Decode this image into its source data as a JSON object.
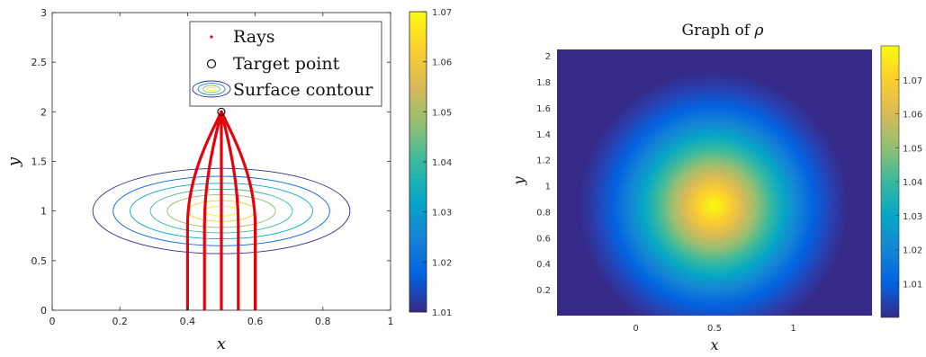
{
  "colors": {
    "ray": "#e8000b",
    "axis": "#262626",
    "parula": [
      "#352a87",
      "#0363e1",
      "#1485d4",
      "#06a7c6",
      "#38b99e",
      "#92bf73",
      "#d9ba56",
      "#fcce2e",
      "#f9fb0e"
    ]
  },
  "chart_data": [
    {
      "type": "line",
      "xlabel": "x",
      "ylabel": "y",
      "xlim": [
        0,
        1
      ],
      "ylim": [
        0,
        3
      ],
      "xticks": [
        "0",
        "0.2",
        "0.4",
        "0.6",
        "0.8",
        "1"
      ],
      "yticks": [
        "0",
        "0.5",
        "1",
        "1.5",
        "2",
        "2.5",
        "3"
      ],
      "legend": {
        "placement": "top-right",
        "entries": [
          {
            "label": "Rays",
            "marker": "red-dot"
          },
          {
            "label": "Target point",
            "marker": "black-circle"
          },
          {
            "label": "Surface contour",
            "marker": "ellipses"
          }
        ]
      },
      "target_point": {
        "x": 0.5,
        "y": 2.0
      },
      "rays": [
        {
          "x_start": 0.4,
          "y_start": 0,
          "x_end": 0.5,
          "y_end": 2.0
        },
        {
          "x_start": 0.45,
          "y_start": 0,
          "x_end": 0.5,
          "y_end": 2.0
        },
        {
          "x_start": 0.5,
          "y_start": 0,
          "x_end": 0.5,
          "y_end": 2.0
        },
        {
          "x_start": 0.55,
          "y_start": 0,
          "x_end": 0.5,
          "y_end": 2.0
        },
        {
          "x_start": 0.6,
          "y_start": 0,
          "x_end": 0.5,
          "y_end": 2.0
        }
      ],
      "contours": {
        "center": {
          "x": 0.5,
          "y": 1.0
        },
        "ellipses": [
          {
            "rx": 0.38,
            "ry": 0.43
          },
          {
            "rx": 0.32,
            "ry": 0.35
          },
          {
            "rx": 0.27,
            "ry": 0.28
          },
          {
            "rx": 0.21,
            "ry": 0.22
          },
          {
            "rx": 0.16,
            "ry": 0.165
          },
          {
            "rx": 0.1,
            "ry": 0.105
          },
          {
            "rx": 0.05,
            "ry": 0.05
          }
        ]
      },
      "colorbar": {
        "range": [
          1.01,
          1.07
        ],
        "ticks": [
          "1.01",
          "1.02",
          "1.03",
          "1.04",
          "1.05",
          "1.06",
          "1.07"
        ]
      }
    },
    {
      "type": "heatmap",
      "title_prefix": "Graph of ",
      "title_symbol": "ρ",
      "xlabel": "x",
      "ylabel": "y",
      "xlim": [
        -0.5,
        1.5
      ],
      "ylim": [
        0,
        2.05
      ],
      "xticks": [
        "0",
        "0.5",
        "1"
      ],
      "yticks": [
        "0.2",
        "0.4",
        "0.6",
        "0.8",
        "1",
        "1.2",
        "1.4",
        "1.6",
        "1.8",
        "2"
      ],
      "field": {
        "center_x": 0.5,
        "center_y": 1.0,
        "min": 1.0,
        "max": 1.075,
        "sigma": 0.2
      },
      "colorbar": {
        "range": [
          1.0,
          1.08
        ],
        "ticks": [
          "1.01",
          "1.02",
          "1.03",
          "1.04",
          "1.05",
          "1.06",
          "1.07"
        ]
      }
    }
  ]
}
